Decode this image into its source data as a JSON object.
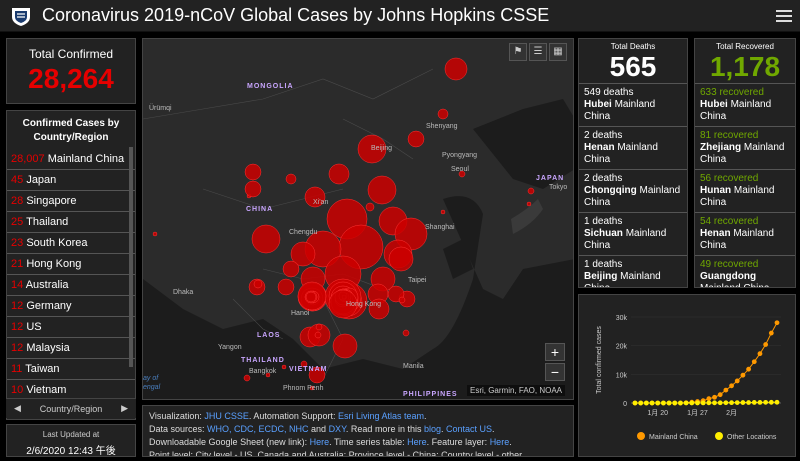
{
  "header": {
    "title": "Coronavirus 2019-nCoV Global Cases by Johns Hopkins CSSE"
  },
  "total_confirmed": {
    "label": "Total Confirmed",
    "value": "28,264"
  },
  "country_list": {
    "header": "Confirmed Cases by Country/Region",
    "rows": [
      {
        "n": "28,007",
        "name": "Mainland China"
      },
      {
        "n": "45",
        "name": "Japan"
      },
      {
        "n": "28",
        "name": "Singapore"
      },
      {
        "n": "25",
        "name": "Thailand"
      },
      {
        "n": "23",
        "name": "South Korea"
      },
      {
        "n": "21",
        "name": "Hong Kong"
      },
      {
        "n": "14",
        "name": "Australia"
      },
      {
        "n": "12",
        "name": "Germany"
      },
      {
        "n": "12",
        "name": "US"
      },
      {
        "n": "12",
        "name": "Malaysia"
      },
      {
        "n": "11",
        "name": "Taiwan"
      },
      {
        "n": "10",
        "name": "Vietnam"
      }
    ],
    "nav_label": "Country/Region"
  },
  "last_updated": {
    "label": "Last Updated at",
    "value": "2/6/2020 12:43 午後"
  },
  "map": {
    "labels": {
      "mongolia": "MONGOLIA",
      "china": "CHINA",
      "japan": "JAPAN",
      "thailand": "THAILAND",
      "vietnam": "VIETNAM",
      "laos": "LAOS",
      "philippines": "PHILIPPINES",
      "urumqi": "Ürümqi",
      "beijing": "Beijing",
      "shenyang": "Shenyang",
      "pyongyang": "Pyongyang",
      "seoul": "Seoul",
      "tokyo": "Tokyo",
      "shanghai": "Shanghai",
      "chengdu": "Chengdu",
      "xian": "Xi'an",
      "dhaka": "Dhaka",
      "hanoi": "Hanoi",
      "hongkong": "Hong Kong",
      "taipei": "Taipei",
      "yangon": "Yangon",
      "bangkok": "Bangkok",
      "phnompenh": "Phnom Penh",
      "manila": "Manila",
      "bay": "ay of",
      "engal": "engal"
    },
    "attribution": "Esri, Garmin, FAO, NOAA",
    "zoom_in": "+",
    "zoom_out": "−"
  },
  "info": {
    "l1a": "Visualization: ",
    "l1b": "JHU CSSE",
    "l1c": ". Automation Support: ",
    "l1d": "Esri Living Atlas team",
    "l1e": ".",
    "l2a": "Data sources: ",
    "l2b": "WHO, CDC, ECDC, NHC",
    "l2c": " and ",
    "l2d": "DXY",
    "l2e": ". Read more in this ",
    "l2f": "blog",
    "l2g": ". ",
    "l2h": "Contact US",
    "l2i": ".",
    "l3a": "Downloadable Google Sheet (new link): ",
    "l3b": "Here",
    "l3c": ". Time series table: ",
    "l3d": "Here",
    "l3e": ". Feature layer: ",
    "l3f": "Here",
    "l3g": ".",
    "l4": "Point level: City level - US, Canada and Australia; Province level - China; Country level - other"
  },
  "deaths": {
    "label": "Total Deaths",
    "value": "565",
    "items": [
      {
        "c": "549 deaths",
        "p": "Hubei",
        "r": "Mainland China"
      },
      {
        "c": "2 deaths",
        "p": "Henan",
        "r": "Mainland China"
      },
      {
        "c": "2 deaths",
        "p": "Chongqing",
        "r": "Mainland China"
      },
      {
        "c": "1 deaths",
        "p": "Sichuan",
        "r": "Mainland China"
      },
      {
        "c": "1 deaths",
        "p": "Beijing",
        "r": "Mainland China"
      }
    ]
  },
  "recovered": {
    "label": "Total Recovered",
    "value": "1,178",
    "items": [
      {
        "c": "633 recovered",
        "p": "Hubei",
        "r": "Mainland China"
      },
      {
        "c": "81 recovered",
        "p": "Zhejiang",
        "r": "Mainland China"
      },
      {
        "c": "56 recovered",
        "p": "Hunan",
        "r": "Mainland China"
      },
      {
        "c": "54 recovered",
        "p": "Henan",
        "r": "Mainland China"
      },
      {
        "c": "49 recovered",
        "p": "Guangdong",
        "r": "Mainland China"
      }
    ]
  },
  "chart_data": {
    "type": "line",
    "ylabel": "Total confirmed cases",
    "yticks": [
      "0",
      "10k",
      "20k",
      "30k"
    ],
    "ylim": [
      0,
      30000
    ],
    "xticks": [
      "1月 20",
      "1月 27",
      "2月"
    ],
    "series": [
      {
        "name": "Mainland China",
        "color": "#ff9900",
        "values": [
          0,
          0,
          0,
          0,
          0,
          0,
          0,
          0,
          0,
          100,
          300,
          500,
          800,
          1500,
          2000,
          2900,
          4500,
          6000,
          7700,
          9700,
          11800,
          14400,
          17200,
          20400,
          24400,
          28000
        ]
      },
      {
        "name": "Other Locations",
        "color": "#ffee00",
        "values": [
          0,
          0,
          0,
          0,
          0,
          0,
          0,
          0,
          0,
          10,
          20,
          30,
          40,
          50,
          60,
          80,
          100,
          120,
          140,
          150,
          170,
          190,
          210,
          230,
          240,
          260
        ]
      }
    ]
  }
}
